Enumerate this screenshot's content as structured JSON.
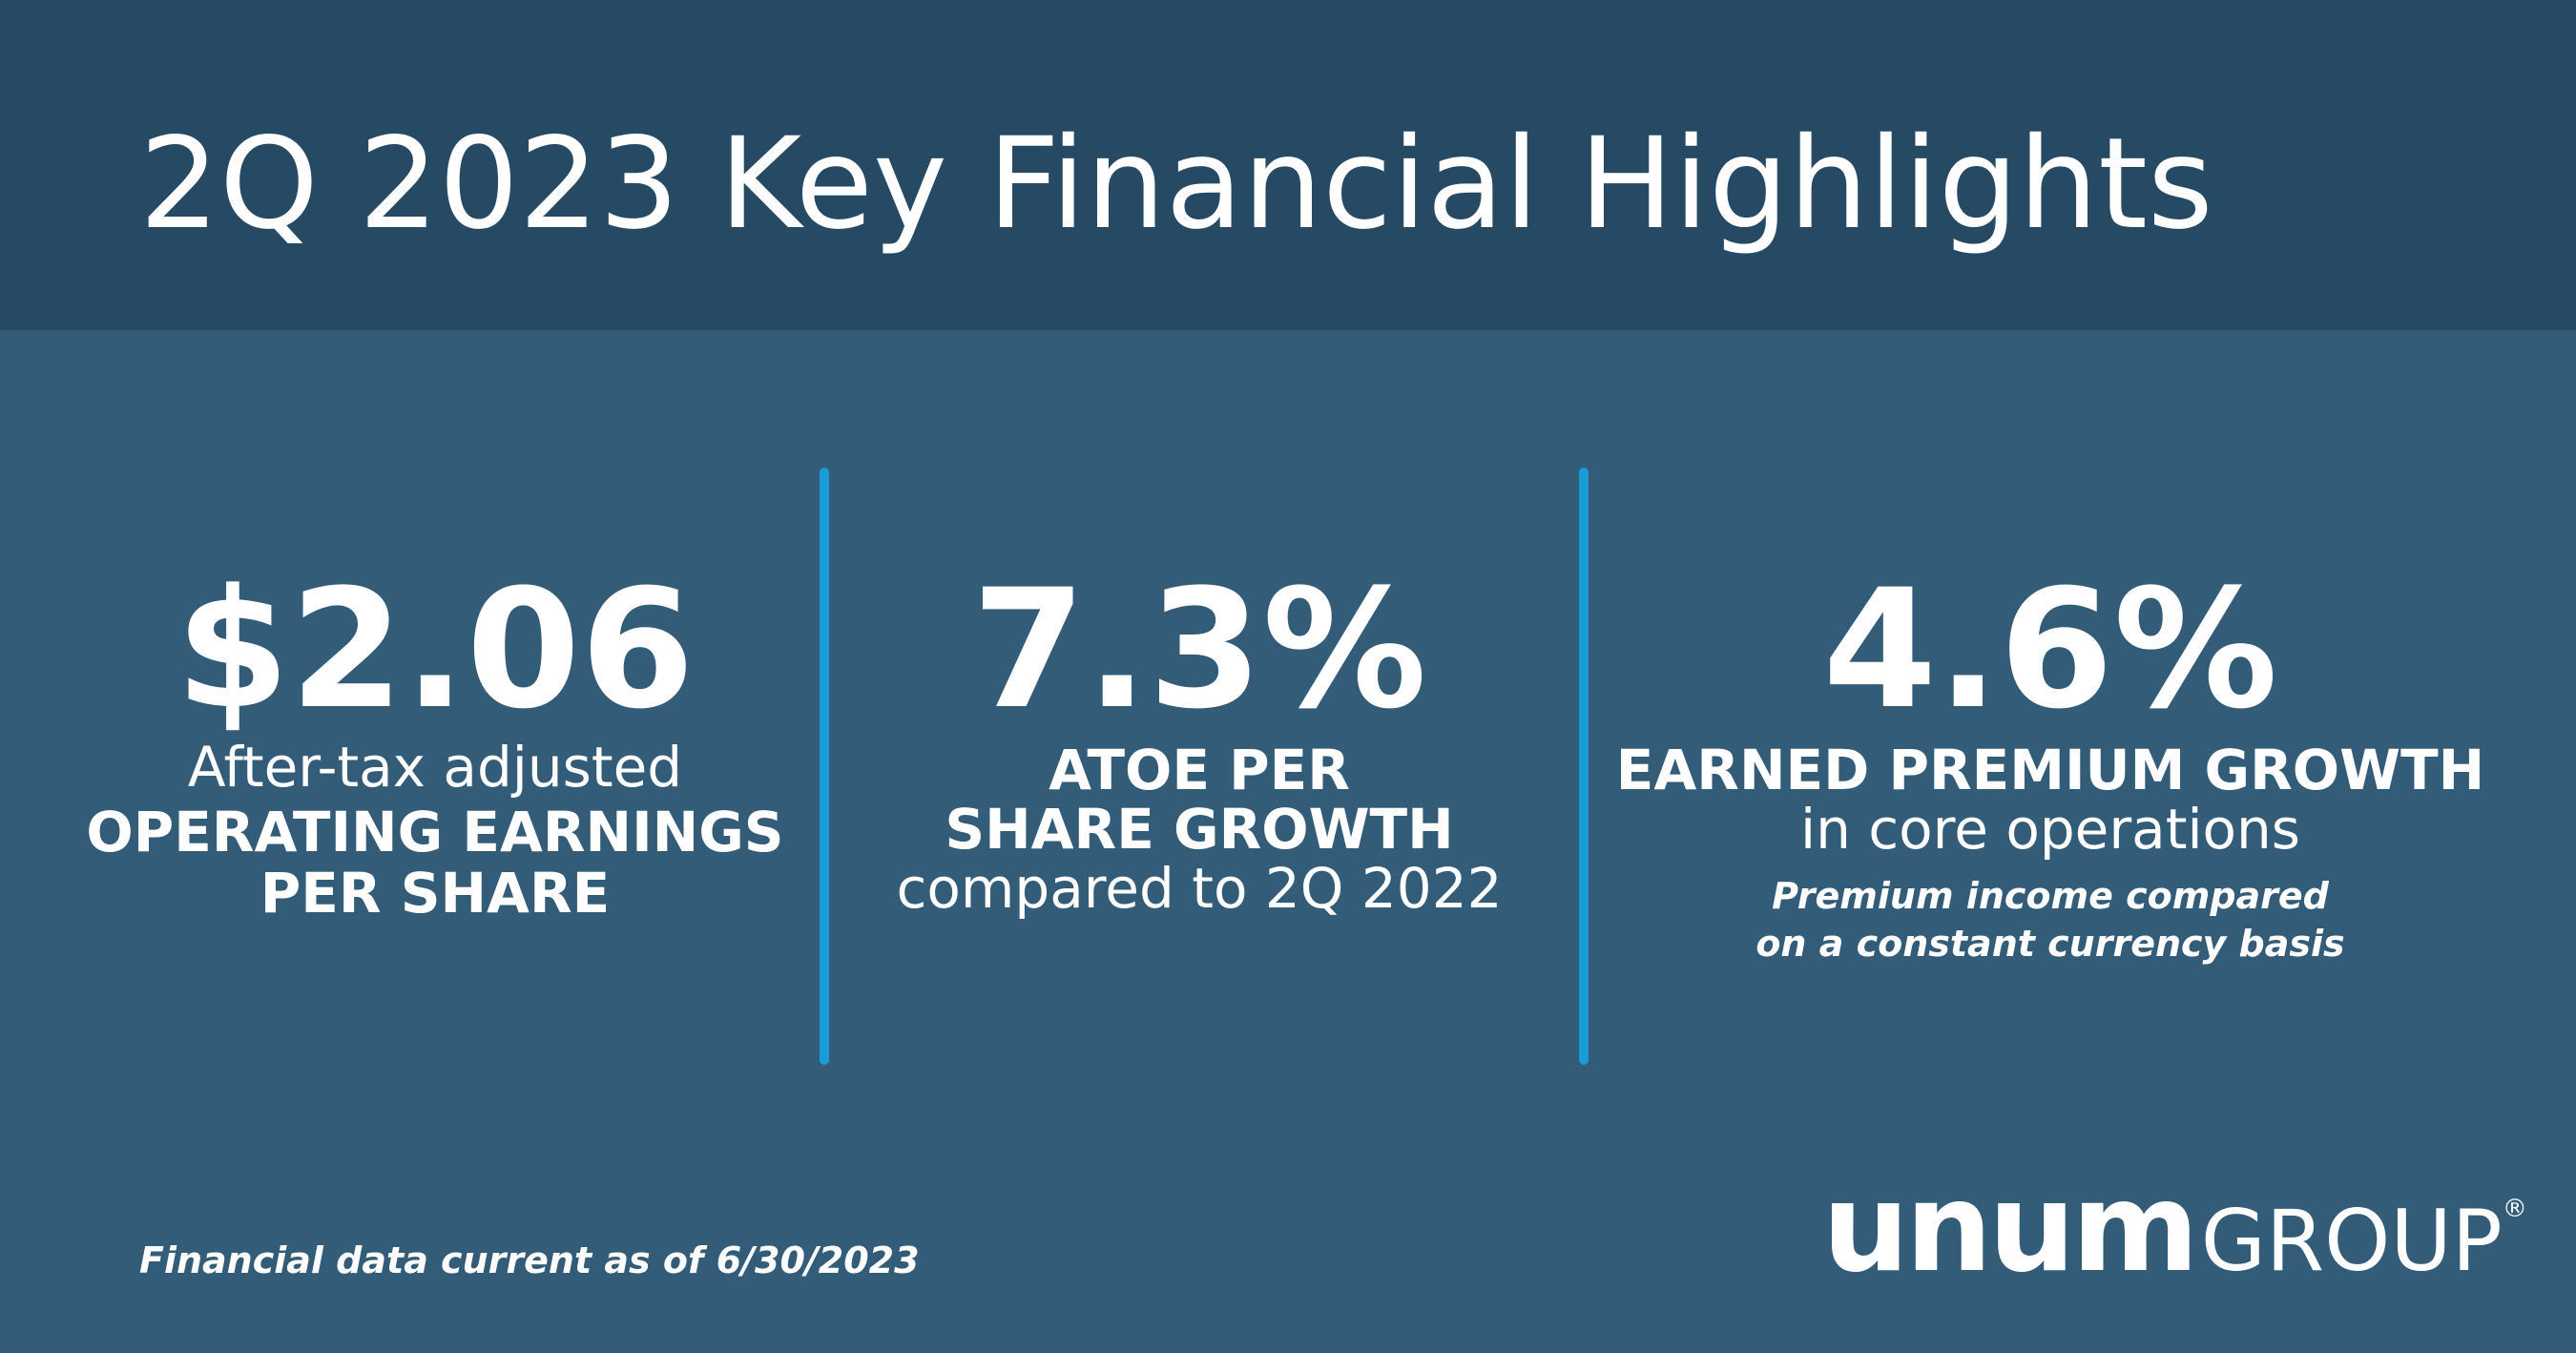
{
  "header": {
    "title": "2Q 2023 Key Financial Highlights"
  },
  "highlights": [
    {
      "value": "$2.06",
      "lines": [
        "After-tax adjusted",
        "OPERATING EARNINGS",
        "PER SHARE"
      ]
    },
    {
      "value": "7.3%",
      "lines": [
        "ATOE PER",
        "SHARE GROWTH",
        "compared to 2Q 2022"
      ]
    },
    {
      "value": "4.6%",
      "lines": [
        "EARNED PREMIUM GROWTH",
        "in core operations",
        "Premium income compared",
        "on a constant currency basis"
      ]
    }
  ],
  "footer": {
    "note": "Financial data current as of 6/30/2023",
    "logo": {
      "brand": "unum",
      "group": "GROUP",
      "mark": "®"
    }
  }
}
